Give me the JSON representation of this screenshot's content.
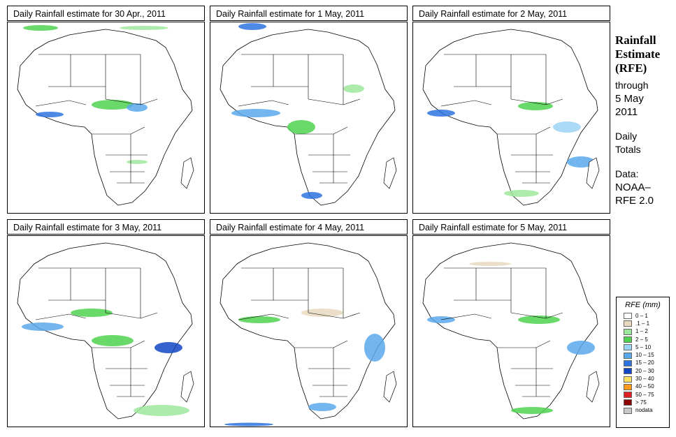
{
  "panels": [
    {
      "title": "Daily Rainfall estimate for  30 Apr., 2011"
    },
    {
      "title": "Daily Rainfall estimate for  1 May, 2011"
    },
    {
      "title": "Daily Rainfall estimate for  2 May, 2011"
    },
    {
      "title": "Daily Rainfall estimate for  3 May, 2011"
    },
    {
      "title": "Daily Rainfall estimate for  4 May, 2011"
    },
    {
      "title": "Daily Rainfall estimate for  5 May, 2011"
    }
  ],
  "side": {
    "heading1": "Rainfall",
    "heading2": "Estimate",
    "heading3": "(RFE)",
    "through": "through",
    "date1": "5 May",
    "date2": "2011",
    "daily": "Daily",
    "totals": "Totals",
    "data_label": "Data:",
    "source1": "NOAA–",
    "source2": "RFE 2.0"
  },
  "legend": {
    "title": "RFE (mm)",
    "items": [
      {
        "label": "0 – 1",
        "color": "#ffffff"
      },
      {
        "label": ".1 – 1",
        "color": "#e8d9c0"
      },
      {
        "label": "1 – 2",
        "color": "#9ee89e"
      },
      {
        "label": "2 – 5",
        "color": "#4fd24f"
      },
      {
        "label": "5 – 10",
        "color": "#9bd4f5"
      },
      {
        "label": "10 – 15",
        "color": "#5aa8ec"
      },
      {
        "label": "15 – 20",
        "color": "#2f73e0"
      },
      {
        "label": "20 – 30",
        "color": "#1346c4"
      },
      {
        "label": "30 – 40",
        "color": "#ffe060"
      },
      {
        "label": "40 – 50",
        "color": "#ff9a1a"
      },
      {
        "label": "50 – 75",
        "color": "#e02020"
      },
      {
        "label": "> 75",
        "color": "#8b0000"
      },
      {
        "label": "nodata",
        "color": "#c8c8c8"
      }
    ]
  }
}
